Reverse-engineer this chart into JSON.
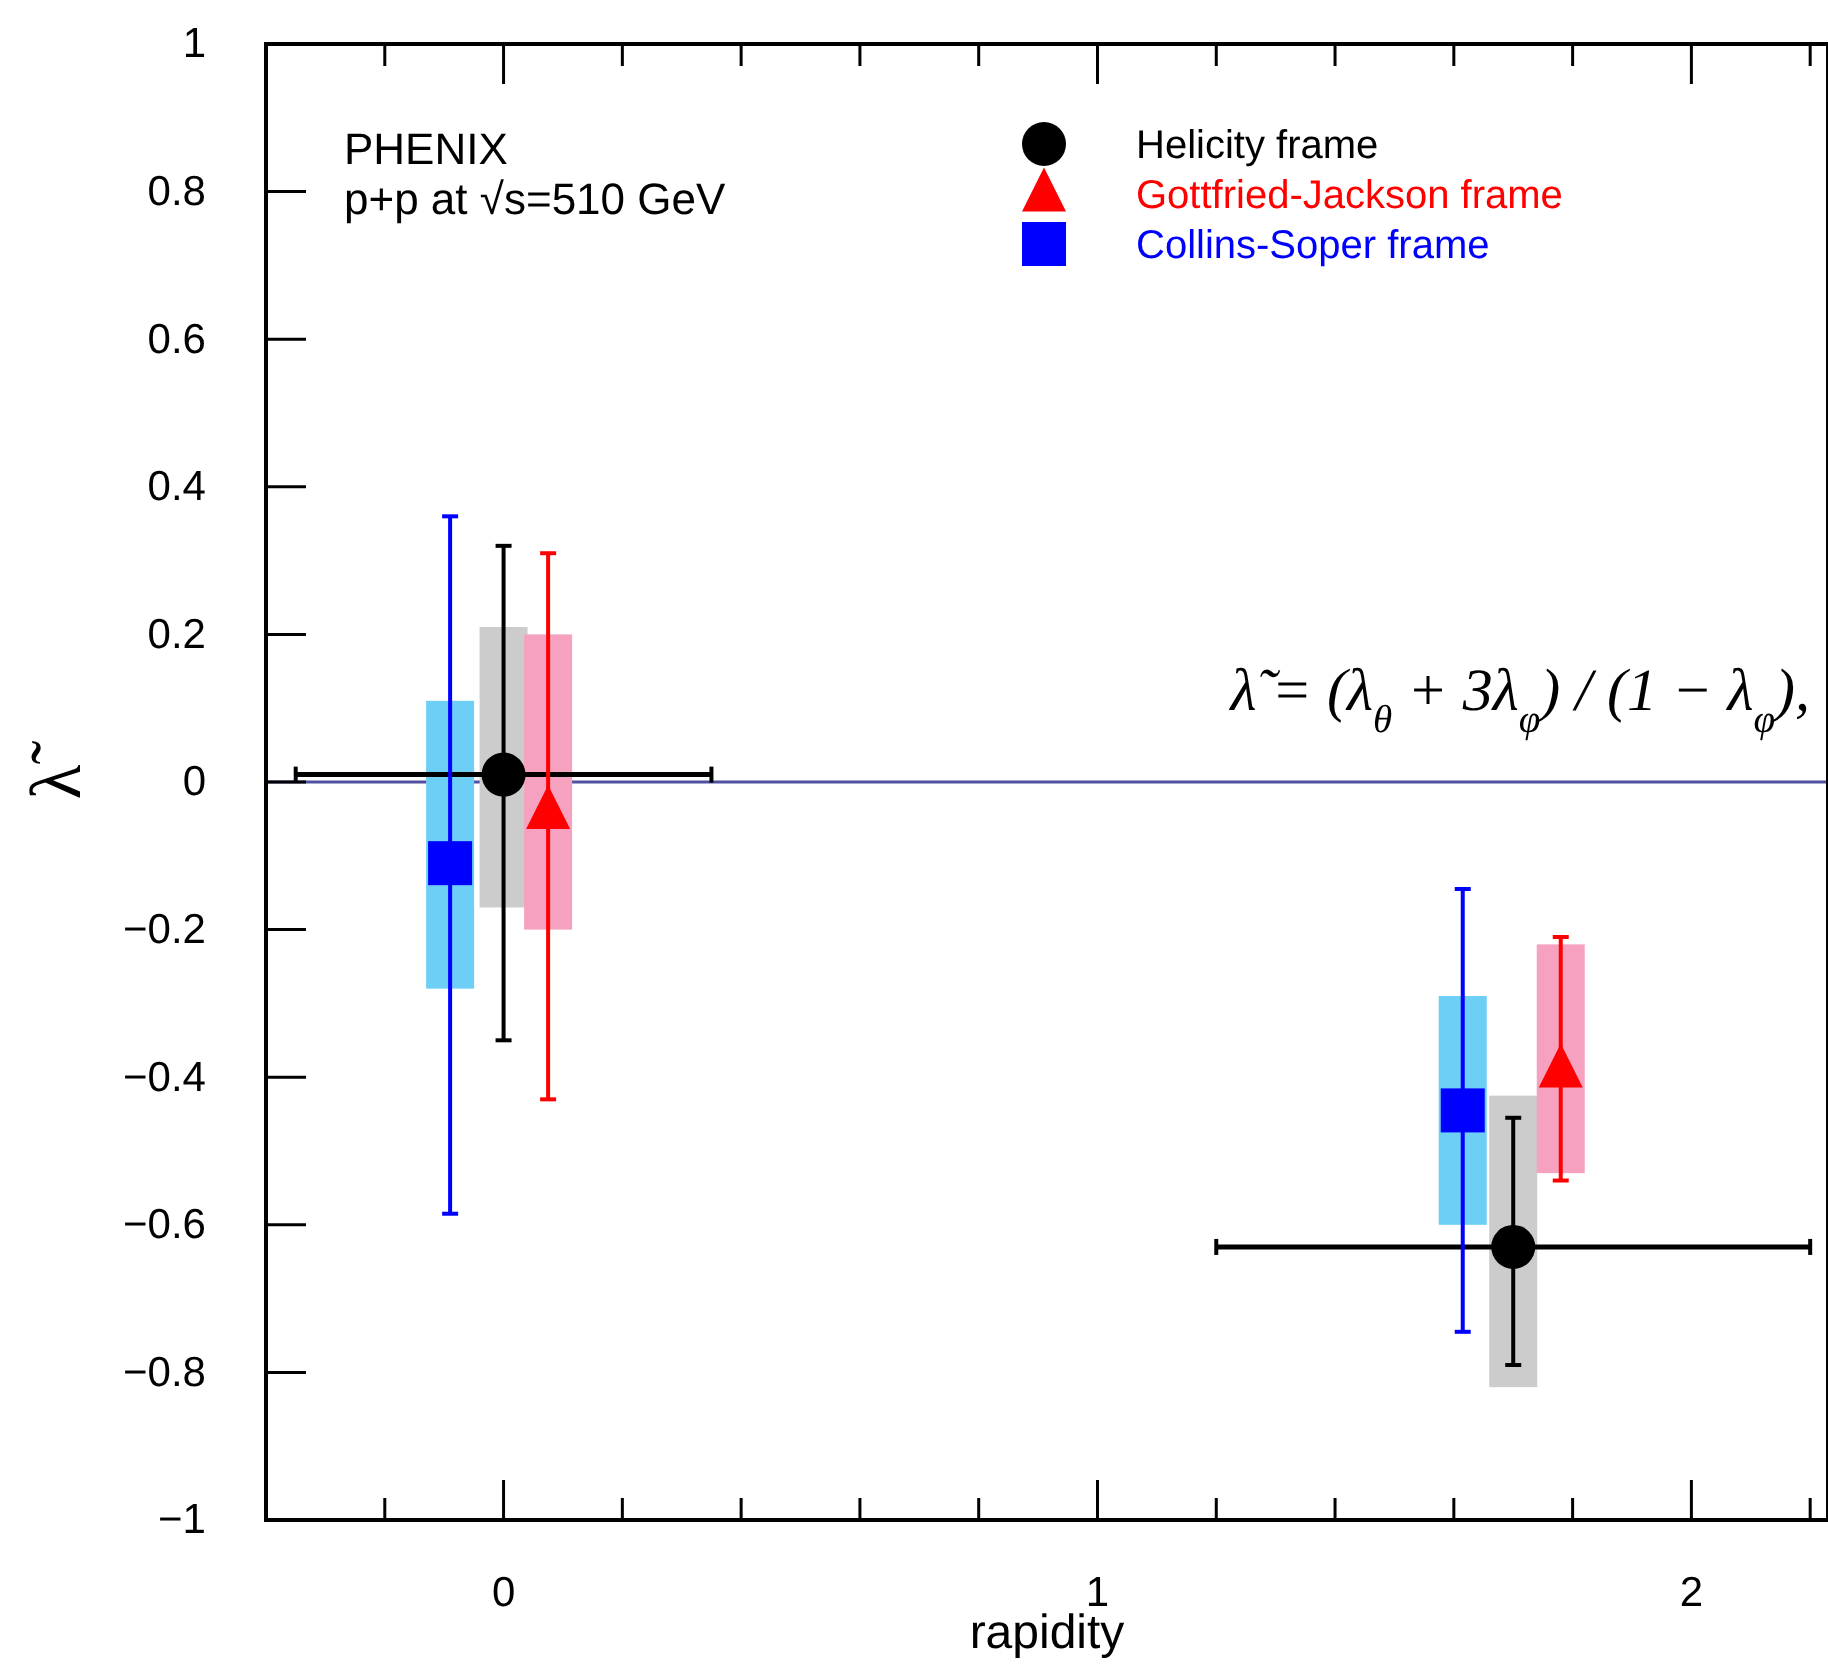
{
  "chart_data": {
    "type": "scatter",
    "xlabel": "rapidity",
    "ylabel": "λ̃",
    "xlim": [
      -0.4,
      2.23
    ],
    "ylim": [
      -1,
      1
    ],
    "xticks": [
      {
        "value": -0.2,
        "label": null
      },
      0,
      {
        "value": 0.2,
        "label": null
      },
      {
        "value": 0.4,
        "label": null
      },
      {
        "value": 0.6,
        "label": null
      },
      {
        "value": 0.8,
        "label": null
      },
      1,
      {
        "value": 1.2,
        "label": null
      },
      {
        "value": 1.4,
        "label": null
      },
      {
        "value": 1.6,
        "label": null
      },
      {
        "value": 1.8,
        "label": null
      },
      2,
      {
        "value": 2.2,
        "label": null
      }
    ],
    "yticks": [
      -1,
      -0.8,
      -0.6,
      -0.4,
      -0.2,
      0,
      0.2,
      0.4,
      0.6,
      0.8,
      1
    ],
    "grid": false,
    "legend": "top right",
    "ref_lines": [
      {
        "axis": "y",
        "value": 0,
        "color": "#5050a0"
      }
    ],
    "annotations": [
      "PHENIX",
      "p+p at √s=510 GeV",
      "λ̃ = (λ$_{θ}$ + 3λ$_{φ}$) / (1 − λ$_{φ}$),"
    ],
    "series": [
      {
        "type": "bar",
        "color": "#cccccc",
        "x": [
          0,
          1.7
        ],
        "base": [
          -0.17,
          -0.82
        ],
        "values": [
          0.38,
          0.395
        ]
      },
      {
        "type": "bar",
        "color": "#f7a1c0",
        "x": [
          0.075,
          1.78
        ],
        "base": [
          -0.2,
          -0.53
        ],
        "values": [
          0.4,
          0.31
        ]
      },
      {
        "type": "bar",
        "color": "#6dcff6",
        "x": [
          -0.09,
          1.615
        ],
        "base": [
          -0.28,
          -0.6
        ],
        "values": [
          0.39,
          0.31
        ]
      },
      {
        "name": "Helicity frame",
        "color": "#000000",
        "marker": "circle",
        "x": [
          0,
          1.7
        ],
        "values": [
          0.01,
          -0.63
        ],
        "errors": [
          [
            -0.35,
            0.32
          ],
          [
            -0.79,
            -0.455
          ]
        ],
        "xerrors": [
          0.35,
          0.5
        ]
      },
      {
        "name": "Gottfried-Jackson frame",
        "color": "#ff0000",
        "marker": "triangle",
        "x": [
          0.075,
          1.78
        ],
        "values": [
          -0.04,
          -0.39
        ],
        "errors": [
          [
            -0.43,
            0.31
          ],
          [
            -0.54,
            -0.21
          ]
        ]
      },
      {
        "name": "Collins-Soper frame",
        "color": "#0000ff",
        "marker": "square",
        "x": [
          -0.09,
          1.615
        ],
        "values": [
          -0.11,
          -0.445
        ],
        "errors": [
          [
            -0.585,
            0.36
          ],
          [
            -0.745,
            -0.145
          ]
        ]
      }
    ]
  }
}
